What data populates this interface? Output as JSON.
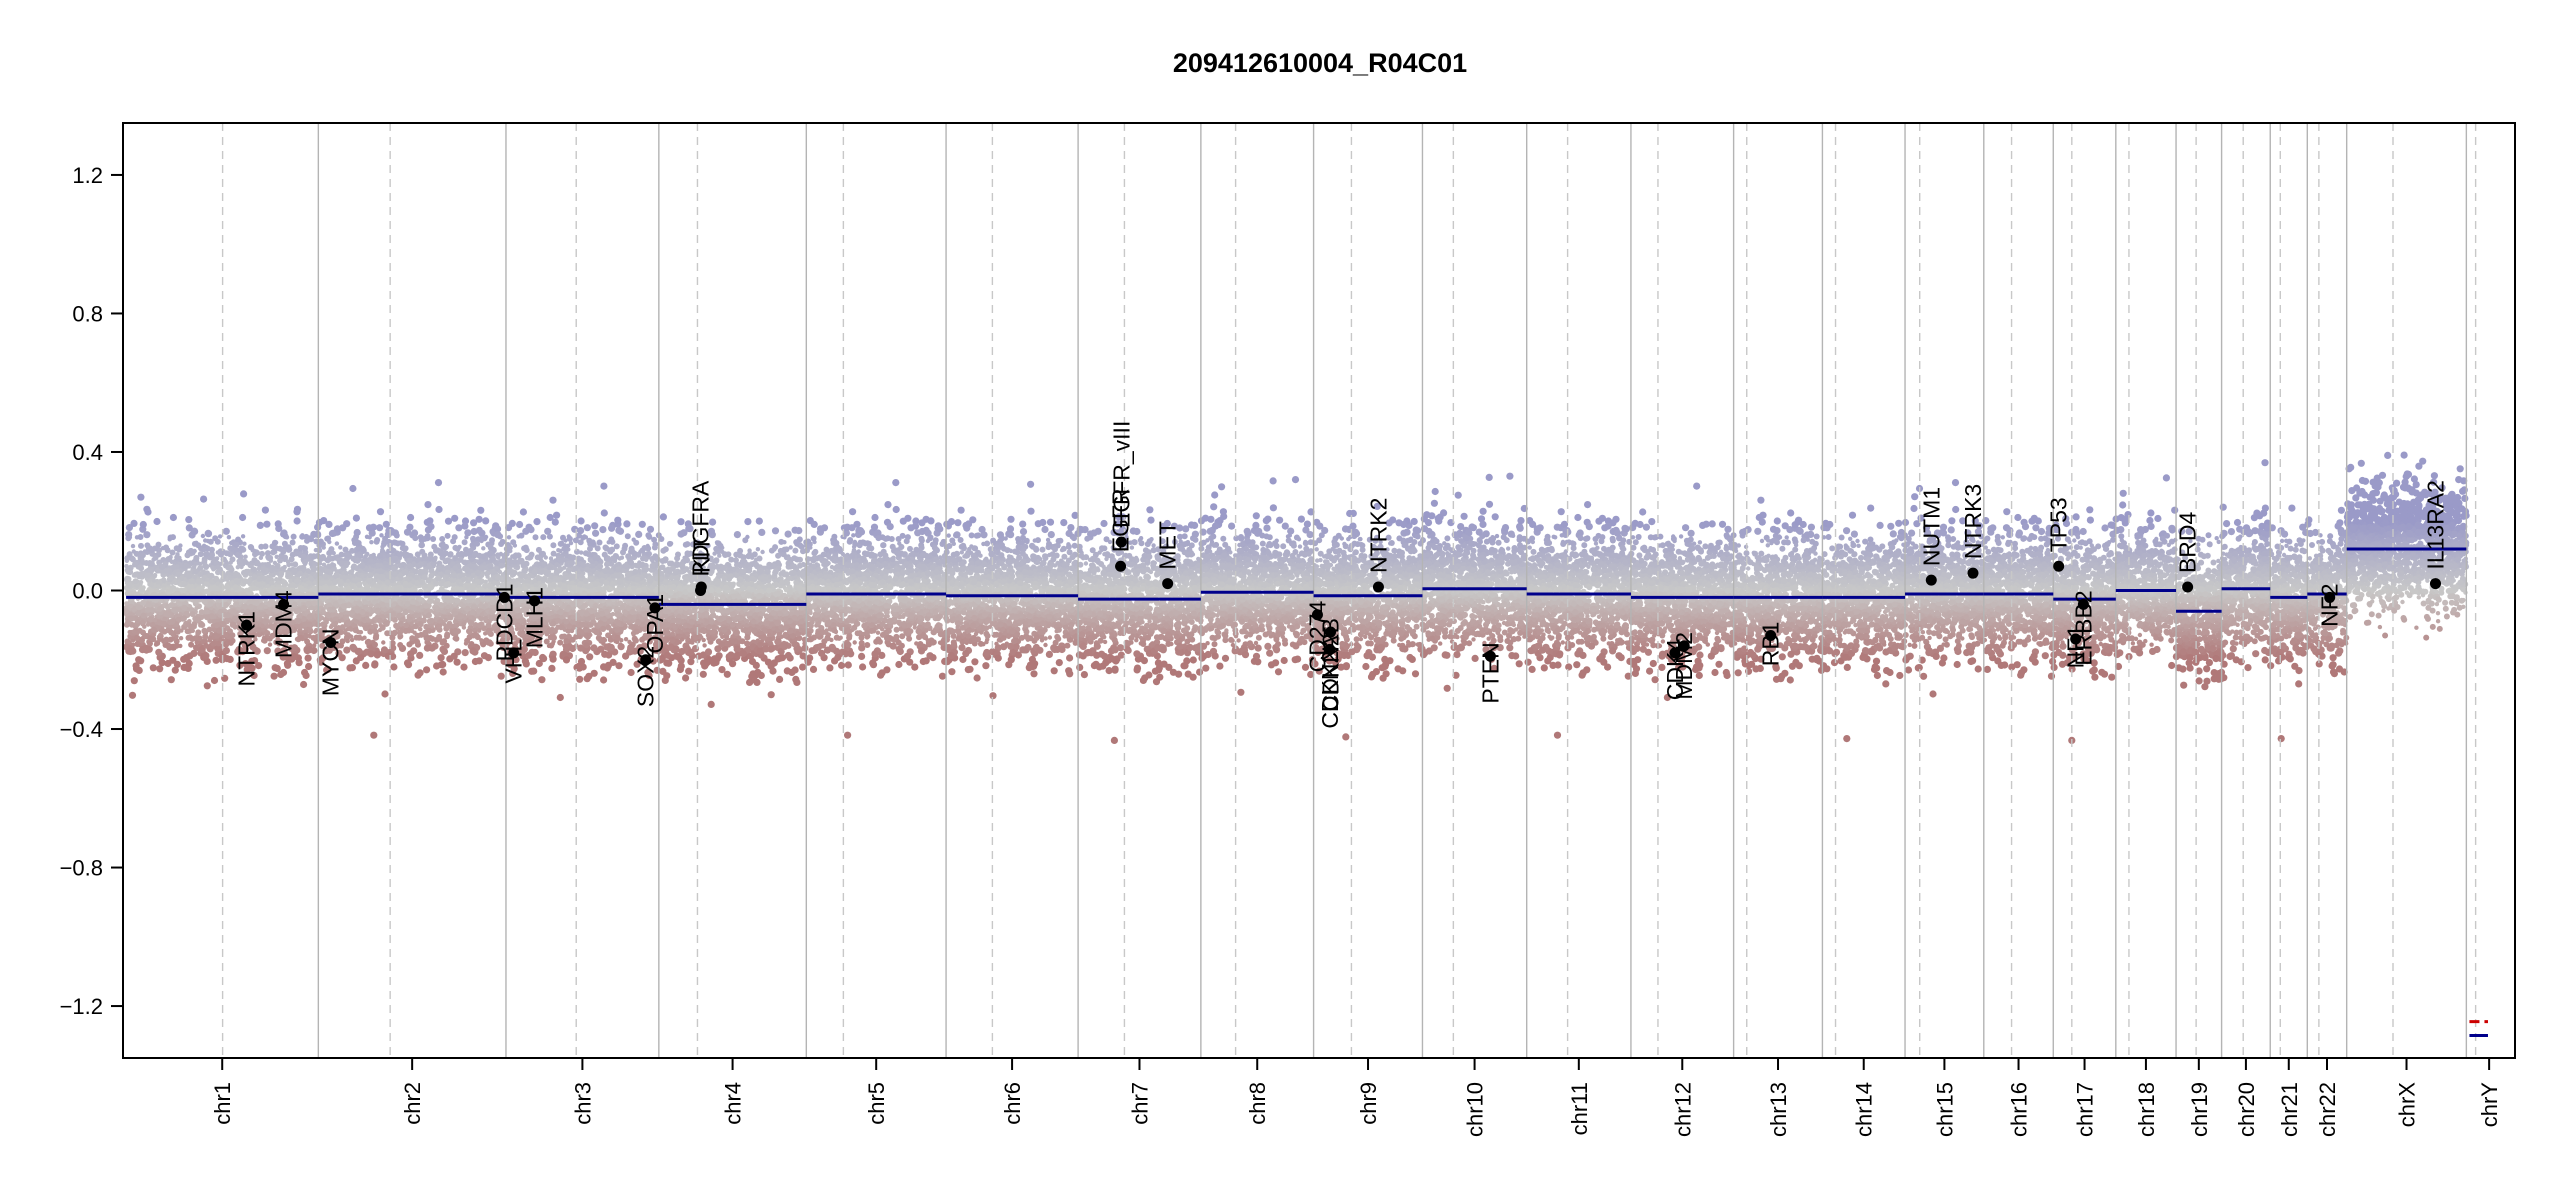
{
  "chart_data": {
    "type": "scatter",
    "title": "209412610004_R04C01",
    "xlabel": "",
    "ylabel": "",
    "ylim": [
      -1.35,
      1.35
    ],
    "yticks": [
      1.2,
      0.8,
      0.4,
      0.0,
      -0.4,
      -0.8,
      -1.2
    ],
    "ytick_labels": [
      "1.2",
      "0.8",
      "0.4",
      "0.0",
      "−0.4",
      "−0.8",
      "−1.2"
    ],
    "grid": false,
    "colors": {
      "gain": "#9a9ac8",
      "neutral": "#c8c8c8",
      "loss": "#b07878",
      "segment": "#00008b",
      "chrY_red": "#cc0000",
      "chrY_blue": "#00008b",
      "gene_point": "#000000"
    },
    "chromosomes": [
      {
        "name": "chr1",
        "length": 249,
        "centromere": 125
      },
      {
        "name": "chr2",
        "length": 243,
        "centromere": 93
      },
      {
        "name": "chr3",
        "length": 198,
        "centromere": 91
      },
      {
        "name": "chr4",
        "length": 191,
        "centromere": 50
      },
      {
        "name": "chr5",
        "length": 181,
        "centromere": 48
      },
      {
        "name": "chr6",
        "length": 171,
        "centromere": 60
      },
      {
        "name": "chr7",
        "length": 159,
        "centromere": 60
      },
      {
        "name": "chr8",
        "length": 146,
        "centromere": 45
      },
      {
        "name": "chr9",
        "length": 141,
        "centromere": 49
      },
      {
        "name": "chr10",
        "length": 135,
        "centromere": 40
      },
      {
        "name": "chr11",
        "length": 135,
        "centromere": 53
      },
      {
        "name": "chr12",
        "length": 133,
        "centromere": 35
      },
      {
        "name": "chr13",
        "length": 115,
        "centromere": 17
      },
      {
        "name": "chr14",
        "length": 107,
        "centromere": 17
      },
      {
        "name": "chr15",
        "length": 102,
        "centromere": 19
      },
      {
        "name": "chr16",
        "length": 90,
        "centromere": 36
      },
      {
        "name": "chr17",
        "length": 81,
        "centromere": 24
      },
      {
        "name": "chr18",
        "length": 78,
        "centromere": 17
      },
      {
        "name": "chr19",
        "length": 59,
        "centromere": 26
      },
      {
        "name": "chr20",
        "length": 63,
        "centromere": 28
      },
      {
        "name": "chr21",
        "length": 48,
        "centromere": 13
      },
      {
        "name": "chr22",
        "length": 51,
        "centromere": 15
      },
      {
        "name": "chrX",
        "length": 155,
        "centromere": 60
      },
      {
        "name": "chrY",
        "length": 59,
        "centromere": 12
      }
    ],
    "segments": [
      {
        "chr": "chr1",
        "start": 0,
        "end": 249,
        "value": -0.02
      },
      {
        "chr": "chr2",
        "start": 0,
        "end": 243,
        "value": -0.01
      },
      {
        "chr": "chr3",
        "start": 0,
        "end": 198,
        "value": -0.02
      },
      {
        "chr": "chr4",
        "start": 0,
        "end": 191,
        "value": -0.04
      },
      {
        "chr": "chr5",
        "start": 0,
        "end": 181,
        "value": -0.01
      },
      {
        "chr": "chr6",
        "start": 0,
        "end": 171,
        "value": -0.015
      },
      {
        "chr": "chr7",
        "start": 0,
        "end": 159,
        "value": -0.025
      },
      {
        "chr": "chr8",
        "start": 0,
        "end": 146,
        "value": -0.005
      },
      {
        "chr": "chr9",
        "start": 0,
        "end": 141,
        "value": -0.015
      },
      {
        "chr": "chr10",
        "start": 0,
        "end": 135,
        "value": 0.005
      },
      {
        "chr": "chr11",
        "start": 0,
        "end": 135,
        "value": -0.01
      },
      {
        "chr": "chr12",
        "start": 0,
        "end": 133,
        "value": -0.02
      },
      {
        "chr": "chr13",
        "start": 0,
        "end": 115,
        "value": -0.02
      },
      {
        "chr": "chr14",
        "start": 0,
        "end": 107,
        "value": -0.02
      },
      {
        "chr": "chr15",
        "start": 0,
        "end": 102,
        "value": -0.01
      },
      {
        "chr": "chr16",
        "start": 0,
        "end": 90,
        "value": -0.01
      },
      {
        "chr": "chr17",
        "start": 0,
        "end": 81,
        "value": -0.025
      },
      {
        "chr": "chr18",
        "start": 0,
        "end": 78,
        "value": 0.0
      },
      {
        "chr": "chr19",
        "start": 0,
        "end": 59,
        "value": -0.06
      },
      {
        "chr": "chr20",
        "start": 0,
        "end": 63,
        "value": 0.005
      },
      {
        "chr": "chr21",
        "start": 0,
        "end": 48,
        "value": -0.02
      },
      {
        "chr": "chr22",
        "start": 0,
        "end": 51,
        "value": -0.01
      },
      {
        "chr": "chrX",
        "start": 0,
        "end": 155,
        "value": 0.12
      }
    ],
    "chrY_lines": [
      {
        "value": -1.245,
        "color": "#cc0000",
        "dashed": true
      },
      {
        "value": -1.285,
        "color": "#00008b",
        "dashed": false
      }
    ],
    "genes": [
      {
        "name": "NTRK1",
        "chr": "chr1",
        "pos": 156,
        "value": -0.1
      },
      {
        "name": "MDM4",
        "chr": "chr1",
        "pos": 204,
        "value": -0.04
      },
      {
        "name": "MYCN",
        "chr": "chr2",
        "pos": 16,
        "value": -0.15
      },
      {
        "name": "PDCD1",
        "chr": "chr2",
        "pos": 241,
        "value": -0.02
      },
      {
        "name": "VHL",
        "chr": "chr3",
        "pos": 10,
        "value": -0.18
      },
      {
        "name": "MLH1",
        "chr": "chr3",
        "pos": 37,
        "value": -0.03
      },
      {
        "name": "SOX2",
        "chr": "chr3",
        "pos": 181,
        "value": -0.2
      },
      {
        "name": "OPA1",
        "chr": "chr3",
        "pos": 193,
        "value": -0.05
      },
      {
        "name": "PDGFRA",
        "chr": "chr4",
        "pos": 54,
        "value": 0.0
      },
      {
        "name": "KIT",
        "chr": "chr4",
        "pos": 55,
        "value": 0.01
      },
      {
        "name": "EGFR",
        "chr": "chr7",
        "pos": 55,
        "value": 0.07
      },
      {
        "name": "EGFR_vIII",
        "chr": "chr7",
        "pos": 56,
        "value": 0.14
      },
      {
        "name": "MET",
        "chr": "chr7",
        "pos": 116,
        "value": 0.02
      },
      {
        "name": "CD274",
        "chr": "chr9",
        "pos": 5,
        "value": -0.07
      },
      {
        "name": "CDKN2A",
        "chr": "chr9",
        "pos": 21,
        "value": -0.17
      },
      {
        "name": "CDKN2B",
        "chr": "chr9",
        "pos": 22,
        "value": -0.12
      },
      {
        "name": "NTRK2",
        "chr": "chr9",
        "pos": 84,
        "value": 0.01
      },
      {
        "name": "PTEN",
        "chr": "chr10",
        "pos": 88,
        "value": -0.19
      },
      {
        "name": "CDK4",
        "chr": "chr12",
        "pos": 57,
        "value": -0.18
      },
      {
        "name": "MDM2",
        "chr": "chr12",
        "pos": 69,
        "value": -0.16
      },
      {
        "name": "RB1",
        "chr": "chr13",
        "pos": 48,
        "value": -0.13
      },
      {
        "name": "NUTM1",
        "chr": "chr15",
        "pos": 34,
        "value": 0.03
      },
      {
        "name": "NTRK3",
        "chr": "chr15",
        "pos": 88,
        "value": 0.05
      },
      {
        "name": "TP53",
        "chr": "chr17",
        "pos": 7,
        "value": 0.07
      },
      {
        "name": "NF1",
        "chr": "chr17",
        "pos": 29,
        "value": -0.14
      },
      {
        "name": "ERBB2",
        "chr": "chr17",
        "pos": 39,
        "value": -0.04
      },
      {
        "name": "BRD4",
        "chr": "chr19",
        "pos": 15,
        "value": 0.01
      },
      {
        "name": "NF2",
        "chr": "chr22",
        "pos": 29,
        "value": -0.02
      },
      {
        "name": "IL13RA2",
        "chr": "chrX",
        "pos": 115,
        "value": 0.02
      }
    ]
  }
}
